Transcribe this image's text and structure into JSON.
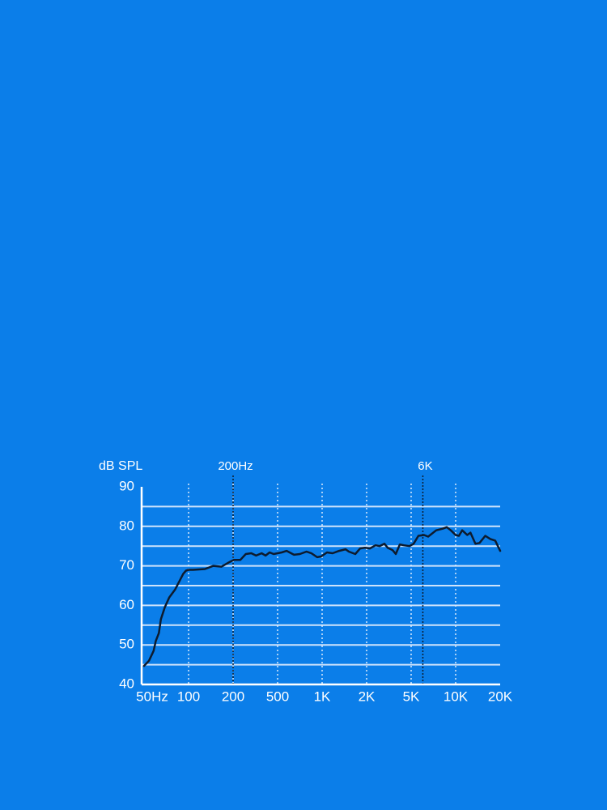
{
  "chart_data": {
    "type": "line",
    "y_label": "dB SPL",
    "x": [
      50,
      54,
      58,
      60,
      63,
      65,
      69,
      74,
      81,
      85,
      92,
      96,
      100,
      107,
      129,
      147,
      167,
      190,
      203,
      232,
      260,
      291,
      321,
      360,
      391,
      424,
      461,
      533,
      576,
      646,
      707,
      784,
      846,
      926,
      987,
      1078,
      1178,
      1303,
      1441,
      1516,
      1676,
      1809,
      1950,
      2138,
      2402,
      2610,
      2886,
      3086,
      3410,
      3646,
      3960,
      4302,
      4840,
      5192,
      5600,
      6120,
      6515,
      7390,
      8175,
      8705,
      9270,
      10000,
      10520,
      11080,
      11520,
      11970,
      12600,
      13600,
      14510,
      15870,
      17150,
      18520,
      20000
    ],
    "values": [
      44.7,
      46,
      48.5,
      51,
      53,
      56.5,
      59.5,
      62,
      64,
      65.5,
      68,
      68.8,
      69,
      69,
      69.2,
      70,
      69.8,
      71,
      71.5,
      71.5,
      73,
      73.2,
      72.6,
      73.2,
      72.6,
      73.4,
      73,
      73.4,
      73.8,
      72.8,
      73,
      73.6,
      73.2,
      72.2,
      72.4,
      73.4,
      73.2,
      73.8,
      74.2,
      73.6,
      73,
      74.4,
      74.6,
      74.4,
      75.2,
      75,
      75.6,
      74.6,
      74,
      73,
      75.4,
      75.2,
      75,
      75.6,
      77.6,
      77.8,
      77.4,
      79,
      79.4,
      79.8,
      79,
      77.8,
      77.6,
      79,
      78.4,
      77.8,
      78.4,
      75.6,
      75.8,
      77.6,
      76.8,
      76.4,
      73.8
    ],
    "color": "#0d1b2e",
    "xlim": [
      50,
      20000
    ],
    "xticks": [
      {
        "value": 50,
        "label": "50Hz"
      },
      100,
      200,
      500,
      {
        "value": 1000,
        "label": "1K"
      },
      {
        "value": 2000,
        "label": "2K"
      },
      {
        "value": 5000,
        "label": "5K"
      },
      {
        "value": 10000,
        "label": "10K"
      },
      {
        "value": 20000,
        "label": "20K"
      }
    ],
    "ylim": [
      40,
      90
    ],
    "yticks": [
      40,
      50,
      60,
      70,
      80,
      90
    ],
    "ygrid": [
      45,
      50,
      55,
      60,
      65,
      70,
      75,
      80,
      85
    ],
    "annotations": [
      {
        "text": "200Hz",
        "x": 200
      },
      {
        "text": "6K",
        "x": 6000
      }
    ]
  }
}
